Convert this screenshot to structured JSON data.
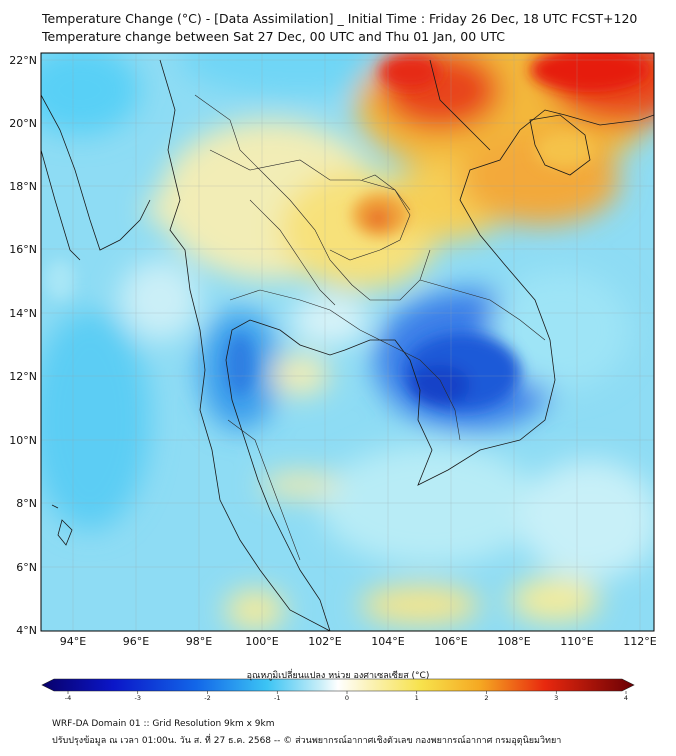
{
  "title": {
    "line1": "Temperature Change (°C) - [Data Assimilation] _ Initial Time : Friday 26 Dec, 18 UTC FCST+120",
    "line2": "Temperature change between Sat 27 Dec, 00 UTC and Thu 01 Jan, 00 UTC"
  },
  "map": {
    "lat_labels": [
      "22°N",
      "20°N",
      "18°N",
      "16°N",
      "14°N",
      "12°N",
      "10°N",
      "8°N",
      "6°N",
      "4°N"
    ],
    "lon_labels": [
      "94°E",
      "96°E",
      "98°E",
      "100°E",
      "102°E",
      "104°E",
      "106°E",
      "108°E",
      "110°E",
      "112°E"
    ],
    "extent": {
      "lon_min": 93,
      "lon_max": 112.4,
      "lat_min": 4,
      "lat_max": 22.3
    },
    "field": "temperature change",
    "colors": {
      "cold": "#1450d8",
      "cool": "#6ad8f8",
      "neutral": "#f4fbfd",
      "warm": "#f6e25a",
      "hot": "#e81c10"
    }
  },
  "colorbar": {
    "caption": "อุณหภูมิเปลี่ยนแปลง หน่วย องศาเซลเซียส (°C)",
    "min": -4,
    "max": 4,
    "ticks": [
      "-4",
      "-3",
      "-2",
      "-1",
      "0",
      "1",
      "2",
      "3",
      "4"
    ]
  },
  "footer": {
    "line1": "WRF-DA Domain 01 :: Grid Resolution 9km x 9km",
    "line2": "ปรับปรุงข้อมูล ณ เวลา 01:00น. วัน ส. ที่ 27 ธ.ค. 2568 -- © ส่วนพยากรณ์อากาศเชิงตัวเลข กองพยากรณ์อากาศ กรมอุตุนิยมวิทยา"
  }
}
